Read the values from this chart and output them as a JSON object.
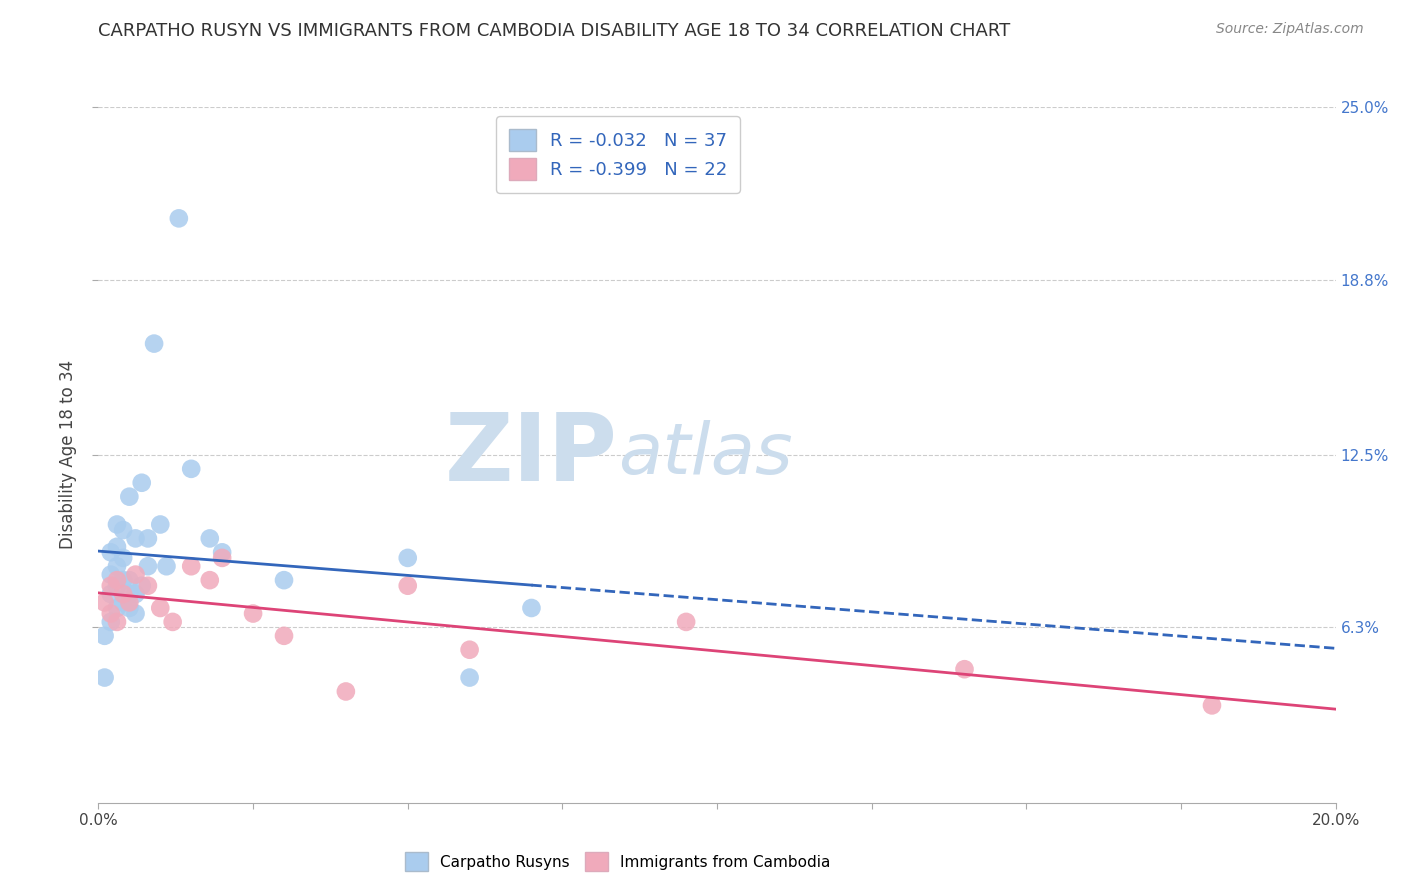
{
  "title": "CARPATHO RUSYN VS IMMIGRANTS FROM CAMBODIA DISABILITY AGE 18 TO 34 CORRELATION CHART",
  "source": "Source: ZipAtlas.com",
  "xlabel": "",
  "ylabel": "Disability Age 18 to 34",
  "xlim": [
    0.0,
    0.2
  ],
  "ylim": [
    0.0,
    0.25
  ],
  "yticks": [
    0.063,
    0.125,
    0.188,
    0.25
  ],
  "ytick_labels": [
    "6.3%",
    "12.5%",
    "18.8%",
    "25.0%"
  ],
  "xticks": [
    0.0,
    0.025,
    0.05,
    0.075,
    0.1,
    0.125,
    0.15,
    0.175,
    0.2
  ],
  "xtick_labels_show": [
    "0.0%",
    "",
    "",
    "",
    "",
    "",
    "",
    "",
    "20.0%"
  ],
  "blue_label": "Carpatho Rusyns",
  "pink_label": "Immigrants from Cambodia",
  "blue_R": -0.032,
  "blue_N": 37,
  "pink_R": -0.399,
  "pink_N": 22,
  "blue_color": "#aaccee",
  "pink_color": "#f0aabb",
  "blue_line_color": "#3366bb",
  "pink_line_color": "#dd4477",
  "watermark_ZIP": "ZIP",
  "watermark_atlas": "atlas",
  "watermark_color": "#ccdded",
  "blue_x": [
    0.001,
    0.001,
    0.002,
    0.002,
    0.002,
    0.002,
    0.003,
    0.003,
    0.003,
    0.003,
    0.003,
    0.004,
    0.004,
    0.004,
    0.004,
    0.005,
    0.005,
    0.005,
    0.005,
    0.006,
    0.006,
    0.006,
    0.007,
    0.007,
    0.008,
    0.008,
    0.009,
    0.01,
    0.011,
    0.013,
    0.015,
    0.018,
    0.02,
    0.03,
    0.05,
    0.06,
    0.07
  ],
  "blue_y": [
    0.06,
    0.045,
    0.075,
    0.065,
    0.082,
    0.09,
    0.07,
    0.078,
    0.085,
    0.092,
    0.1,
    0.072,
    0.08,
    0.088,
    0.098,
    0.07,
    0.075,
    0.08,
    0.11,
    0.068,
    0.075,
    0.095,
    0.078,
    0.115,
    0.085,
    0.095,
    0.165,
    0.1,
    0.085,
    0.21,
    0.12,
    0.095,
    0.09,
    0.08,
    0.088,
    0.045,
    0.07
  ],
  "pink_x": [
    0.001,
    0.002,
    0.002,
    0.003,
    0.003,
    0.004,
    0.005,
    0.006,
    0.008,
    0.01,
    0.012,
    0.015,
    0.018,
    0.02,
    0.025,
    0.03,
    0.04,
    0.05,
    0.06,
    0.095,
    0.14,
    0.18
  ],
  "pink_y": [
    0.072,
    0.078,
    0.068,
    0.08,
    0.065,
    0.075,
    0.072,
    0.082,
    0.078,
    0.07,
    0.065,
    0.085,
    0.08,
    0.088,
    0.068,
    0.06,
    0.04,
    0.078,
    0.055,
    0.065,
    0.048,
    0.035
  ]
}
